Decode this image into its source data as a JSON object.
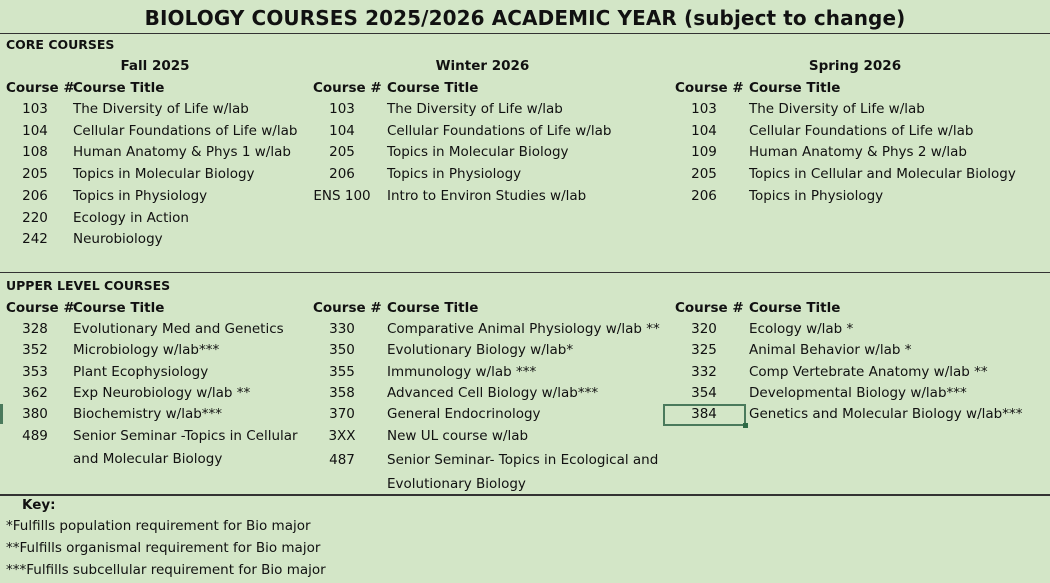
{
  "title": "BIOLOGY COURSES 2025/2026 ACADEMIC YEAR (subject to change)",
  "core": {
    "label": "CORE COURSES",
    "terms": [
      {
        "name": "Fall 2025",
        "col_num": "Course #",
        "col_title": "Course Title",
        "rows": [
          {
            "num": "103",
            "title": "The Diversity of Life w/lab"
          },
          {
            "num": "104",
            "title": "Cellular Foundations of Life w/lab"
          },
          {
            "num": "108",
            "title": "Human Anatomy & Phys 1 w/lab"
          },
          {
            "num": "205",
            "title": "Topics in Molecular Biology"
          },
          {
            "num": "206",
            "title": "Topics in Physiology"
          },
          {
            "num": "220",
            "title": "Ecology in Action"
          },
          {
            "num": "242",
            "title": "Neurobiology"
          }
        ]
      },
      {
        "name": "Winter 2026",
        "col_num": "Course #",
        "col_title": "Course Title",
        "rows": [
          {
            "num": "103",
            "title": "The Diversity of Life w/lab"
          },
          {
            "num": "104",
            "title": "Cellular Foundations of Life w/lab"
          },
          {
            "num": "205",
            "title": "Topics in Molecular Biology"
          },
          {
            "num": "206",
            "title": "Topics in Physiology"
          },
          {
            "num": "ENS 100",
            "title": "Intro to Environ Studies w/lab"
          }
        ]
      },
      {
        "name": "Spring 2026",
        "col_num": "Course #",
        "col_title": "Course Title",
        "rows": [
          {
            "num": "103",
            "title": "The Diversity of Life w/lab"
          },
          {
            "num": "104",
            "title": "Cellular Foundations of Life w/lab"
          },
          {
            "num": "109",
            "title": "Human Anatomy & Phys 2 w/lab"
          },
          {
            "num": "205",
            "title": "Topics in Cellular and Molecular Biology"
          },
          {
            "num": "206",
            "title": "Topics in Physiology"
          }
        ]
      }
    ]
  },
  "upper": {
    "label": "UPPER LEVEL COURSES",
    "terms": [
      {
        "col_num": "Course #",
        "col_title": "Course Title",
        "rows": [
          {
            "num": "328",
            "title": "Evolutionary Med and Genetics"
          },
          {
            "num": "352",
            "title": "Microbiology w/lab***"
          },
          {
            "num": "353",
            "title": "Plant Ecophysiology"
          },
          {
            "num": "362",
            "title": "Exp Neurobiology w/lab **"
          },
          {
            "num": "380",
            "title": "Biochemistry w/lab***"
          },
          {
            "num": "489",
            "title": "Senior Seminar -Topics in Cellular"
          },
          {
            "num": "",
            "title": "and Molecular Biology"
          }
        ]
      },
      {
        "col_num": "Course #",
        "col_title": "Course Title",
        "rows": [
          {
            "num": "330",
            "title": "Comparative Animal Physiology w/lab **"
          },
          {
            "num": "350",
            "title": "Evolutionary Biology w/lab*"
          },
          {
            "num": "355",
            "title": "Immunology w/lab ***"
          },
          {
            "num": "358",
            "title": "Advanced Cell Biology w/lab***"
          },
          {
            "num": "370",
            "title": "General Endocrinology"
          },
          {
            "num": "3XX",
            "title": "New UL course w/lab"
          },
          {
            "num": "487",
            "title": "Senior Seminar- Topics in Ecological and"
          },
          {
            "num": "",
            "title": "Evolutionary Biology"
          }
        ]
      },
      {
        "col_num": "Course #",
        "col_title": "Course Title",
        "rows": [
          {
            "num": "320",
            "title": "Ecology w/lab *"
          },
          {
            "num": "325",
            "title": "Animal Behavior w/lab *"
          },
          {
            "num": "332",
            "title": "Comp Vertebrate Anatomy w/lab **"
          },
          {
            "num": "354",
            "title": "Developmental Biology  w/lab***"
          },
          {
            "num": "384",
            "title": "Genetics and Molecular Biology w/lab***"
          }
        ]
      }
    ]
  },
  "key": {
    "title": "Key:",
    "lines": [
      "*Fulfills population requirement for Bio major",
      "**Fulfills organismal requirement for Bio major",
      "***Fulfills subcellular requirement for Bio major"
    ]
  },
  "colors": {
    "background": "#d3e6c7",
    "selection": "#2d6a45"
  }
}
